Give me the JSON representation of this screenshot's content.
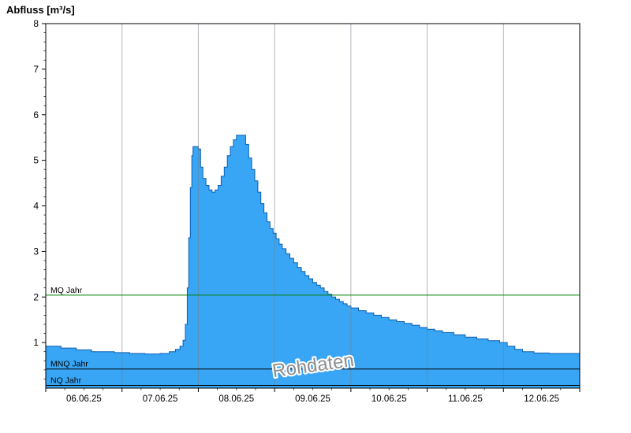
{
  "title": "Abfluss [m³/s]",
  "watermark": "Rohdaten",
  "colors": {
    "area_fill": "#38a6f5",
    "area_stroke": "#0a5fb4",
    "grid": "#6e7b8a",
    "axis": "#000000",
    "mq_line": "#008000",
    "mnq_line": "#000000",
    "nq_line": "#000000",
    "watermark_fill": "#8f8f8f",
    "watermark_halo": "#ffffff",
    "background": "#ffffff"
  },
  "chart_data": {
    "type": "area",
    "title": "Abfluss [m³/s]",
    "ylabel": "Abfluss [m³/s]",
    "xlabel": "",
    "ylim": [
      0,
      8
    ],
    "y_ticks": [
      1,
      2,
      3,
      4,
      5,
      6,
      7,
      8
    ],
    "x_domain_days": [
      0,
      7
    ],
    "x_tick_labels": [
      "06.06.25",
      "07.06.25",
      "08.06.25",
      "09.06.25",
      "10.06.25",
      "11.06.25",
      "12.06.25"
    ],
    "grid": "vertical-day-boundaries",
    "legend_position": "none",
    "series_name": "Abfluss Rohdaten",
    "step_points": [
      [
        0.0,
        0.92
      ],
      [
        0.2,
        0.88
      ],
      [
        0.4,
        0.84
      ],
      [
        0.6,
        0.8
      ],
      [
        0.9,
        0.78
      ],
      [
        1.1,
        0.76
      ],
      [
        1.3,
        0.75
      ],
      [
        1.5,
        0.76
      ],
      [
        1.62,
        0.8
      ],
      [
        1.7,
        0.85
      ],
      [
        1.76,
        0.92
      ],
      [
        1.8,
        1.05
      ],
      [
        1.83,
        1.4
      ],
      [
        1.855,
        2.2
      ],
      [
        1.875,
        3.3
      ],
      [
        1.895,
        4.4
      ],
      [
        1.915,
        5.1
      ],
      [
        1.93,
        5.3
      ],
      [
        2.0,
        5.25
      ],
      [
        2.03,
        4.85
      ],
      [
        2.06,
        4.6
      ],
      [
        2.1,
        4.45
      ],
      [
        2.14,
        4.35
      ],
      [
        2.18,
        4.3
      ],
      [
        2.22,
        4.35
      ],
      [
        2.26,
        4.45
      ],
      [
        2.3,
        4.65
      ],
      [
        2.34,
        4.85
      ],
      [
        2.38,
        5.1
      ],
      [
        2.42,
        5.3
      ],
      [
        2.46,
        5.45
      ],
      [
        2.5,
        5.55
      ],
      [
        2.58,
        5.55
      ],
      [
        2.62,
        5.35
      ],
      [
        2.66,
        5.05
      ],
      [
        2.7,
        4.8
      ],
      [
        2.74,
        4.55
      ],
      [
        2.78,
        4.3
      ],
      [
        2.82,
        4.05
      ],
      [
        2.86,
        3.85
      ],
      [
        2.9,
        3.65
      ],
      [
        2.94,
        3.5
      ],
      [
        2.98,
        3.4
      ],
      [
        3.02,
        3.28
      ],
      [
        3.06,
        3.16
      ],
      [
        3.1,
        3.06
      ],
      [
        3.15,
        2.95
      ],
      [
        3.2,
        2.85
      ],
      [
        3.25,
        2.75
      ],
      [
        3.3,
        2.65
      ],
      [
        3.35,
        2.56
      ],
      [
        3.4,
        2.47
      ],
      [
        3.45,
        2.4
      ],
      [
        3.5,
        2.32
      ],
      [
        3.55,
        2.26
      ],
      [
        3.6,
        2.2
      ],
      [
        3.65,
        2.12
      ],
      [
        3.7,
        2.06
      ],
      [
        3.75,
        2.0
      ],
      [
        3.8,
        1.95
      ],
      [
        3.85,
        1.9
      ],
      [
        3.9,
        1.85
      ],
      [
        3.95,
        1.8
      ],
      [
        4.0,
        1.76
      ],
      [
        4.1,
        1.7
      ],
      [
        4.2,
        1.65
      ],
      [
        4.3,
        1.6
      ],
      [
        4.4,
        1.55
      ],
      [
        4.5,
        1.5
      ],
      [
        4.6,
        1.46
      ],
      [
        4.7,
        1.42
      ],
      [
        4.8,
        1.38
      ],
      [
        4.9,
        1.33
      ],
      [
        5.0,
        1.29
      ],
      [
        5.1,
        1.26
      ],
      [
        5.2,
        1.22
      ],
      [
        5.35,
        1.17
      ],
      [
        5.5,
        1.12
      ],
      [
        5.65,
        1.08
      ],
      [
        5.8,
        1.04
      ],
      [
        5.95,
        1.0
      ],
      [
        6.05,
        0.92
      ],
      [
        6.15,
        0.85
      ],
      [
        6.25,
        0.8
      ],
      [
        6.4,
        0.77
      ],
      [
        6.6,
        0.76
      ],
      [
        7.0,
        0.75
      ]
    ],
    "reference_lines": [
      {
        "label": "MQ Jahr",
        "value": 2.04,
        "color": "#008000"
      },
      {
        "label": "MNQ Jahr",
        "value": 0.42,
        "color": "#000000"
      },
      {
        "label": "NQ Jahr",
        "value": 0.06,
        "color": "#000000"
      }
    ],
    "watermark": "Rohdaten"
  }
}
